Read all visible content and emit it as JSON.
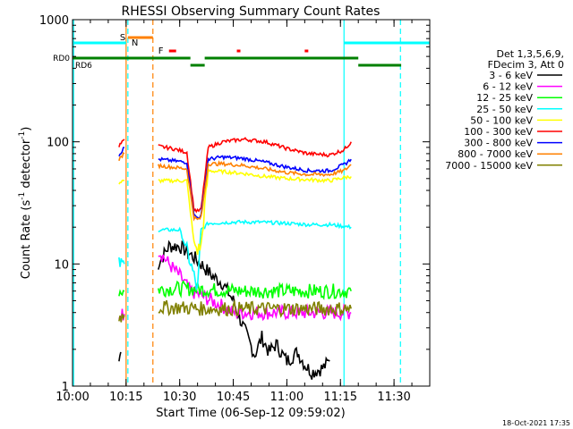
{
  "chart_data": {
    "type": "line",
    "title": "RHESSI Observing Summary Count Rates",
    "xlabel": "Start Time (06-Sep-12 09:59:02)",
    "ylabel_parts": [
      "Count Rate (s",
      "-1",
      " detector",
      "-1",
      ")"
    ],
    "y_log": true,
    "ylim": [
      1,
      1000
    ],
    "xlim_minutes": [
      0,
      100
    ],
    "x_ticks": [
      {
        "m": 0,
        "label": "10:00"
      },
      {
        "m": 15,
        "label": "10:15"
      },
      {
        "m": 30,
        "label": "10:30"
      },
      {
        "m": 45,
        "label": "10:45"
      },
      {
        "m": 60,
        "label": "11:00"
      },
      {
        "m": 75,
        "label": "11:15"
      },
      {
        "m": 90,
        "label": "11:30"
      }
    ],
    "y_ticks": [
      {
        "v": 1,
        "label": "1"
      },
      {
        "v": 10,
        "label": "10"
      },
      {
        "v": 100,
        "label": "100"
      },
      {
        "v": 1000,
        "label": "1000"
      }
    ],
    "footer_date": "18-Oct-2021 17:35",
    "legend_header": [
      "Det 1,3,5,6,9,",
      "FDecim 3, Att 0"
    ],
    "series": [
      {
        "name": "3 - 6 keV",
        "color": "#000000",
        "segments": [
          [
            [
              13,
              1.6
            ],
            [
              13.5,
              1.9
            ]
          ],
          [
            [
              24,
              10
            ],
            [
              27,
              14
            ],
            [
              30,
              14
            ],
            [
              33,
              12
            ],
            [
              36,
              10
            ],
            [
              39,
              8
            ],
            [
              42,
              7
            ],
            [
              45,
              5
            ],
            [
              47,
              3.5
            ],
            [
              49,
              2.5
            ],
            [
              51,
              1.8
            ],
            [
              53,
              2.5
            ],
            [
              55,
              1.9
            ],
            [
              57,
              2.2
            ],
            [
              60,
              1.6
            ],
            [
              63,
              1.9
            ],
            [
              65,
              1.5
            ],
            [
              67,
              1.3
            ],
            [
              70,
              1.4
            ],
            [
              72,
              1.6
            ]
          ]
        ]
      },
      {
        "name": "6 - 12 keV",
        "color": "#ff00ff",
        "segments": [
          [
            [
              13,
              3.8
            ],
            [
              14.5,
              3.9
            ]
          ],
          [
            [
              24,
              13
            ],
            [
              27,
              10
            ],
            [
              30,
              8
            ],
            [
              33,
              6
            ],
            [
              36,
              5.5
            ],
            [
              39,
              5
            ],
            [
              42,
              4.5
            ],
            [
              45,
              4
            ],
            [
              48,
              4
            ],
            [
              51,
              4
            ],
            [
              54,
              4
            ],
            [
              57,
              4
            ],
            [
              60,
              4
            ],
            [
              63,
              4
            ],
            [
              66,
              4
            ],
            [
              69,
              4
            ],
            [
              72,
              4
            ],
            [
              75,
              4
            ],
            [
              78,
              4
            ]
          ]
        ]
      },
      {
        "name": "12 - 25 keV",
        "color": "#00ff00",
        "segments": [
          [
            [
              13,
              6
            ],
            [
              14.5,
              6
            ]
          ],
          [
            [
              24,
              6.2
            ],
            [
              30,
              6.3
            ],
            [
              36,
              6.2
            ],
            [
              42,
              6.1
            ],
            [
              48,
              6
            ],
            [
              54,
              6
            ],
            [
              60,
              6
            ],
            [
              66,
              6
            ],
            [
              72,
              6
            ],
            [
              78,
              6
            ]
          ]
        ]
      },
      {
        "name": "25 - 50 keV",
        "color": "#00ffff",
        "segments": [
          [
            [
              13,
              10
            ],
            [
              14.5,
              10
            ]
          ],
          [
            [
              24,
              19
            ],
            [
              30,
              19
            ],
            [
              32,
              13
            ],
            [
              34,
              8
            ],
            [
              35,
              6
            ],
            [
              36,
              19
            ],
            [
              38,
              21.5
            ],
            [
              45,
              22
            ],
            [
              52,
              22
            ],
            [
              60,
              21.5
            ],
            [
              66,
              21
            ],
            [
              72,
              21
            ],
            [
              78,
              20
            ]
          ]
        ]
      },
      {
        "name": "50 - 100 keV",
        "color": "#ffff00",
        "segments": [
          [
            [
              13,
              46
            ],
            [
              14.5,
              48
            ]
          ],
          [
            [
              24,
              48
            ],
            [
              30,
              48
            ],
            [
              32,
              48
            ],
            [
              34,
              15
            ],
            [
              35,
              13
            ],
            [
              36,
              14
            ],
            [
              38,
              58
            ],
            [
              42,
              57
            ],
            [
              48,
              55
            ],
            [
              54,
              52
            ],
            [
              60,
              50
            ],
            [
              66,
              49
            ],
            [
              72,
              48
            ],
            [
              76,
              51
            ],
            [
              78,
              52
            ]
          ]
        ]
      },
      {
        "name": "100 - 300 keV",
        "color": "#ff0000",
        "segments": [
          [
            [
              13,
              92
            ],
            [
              14.5,
              105
            ]
          ],
          [
            [
              24,
              92
            ],
            [
              28,
              88
            ],
            [
              32,
              82
            ],
            [
              34,
              28
            ],
            [
              35,
              27
            ],
            [
              36,
              28
            ],
            [
              38,
              90
            ],
            [
              42,
              100
            ],
            [
              48,
              105
            ],
            [
              54,
              100
            ],
            [
              60,
              88
            ],
            [
              66,
              80
            ],
            [
              72,
              78
            ],
            [
              76,
              86
            ],
            [
              78,
              100
            ]
          ]
        ]
      },
      {
        "name": "300 - 800 keV",
        "color": "#0000ff",
        "segments": [
          [
            [
              13,
              78
            ],
            [
              14.5,
              90
            ]
          ],
          [
            [
              24,
              72
            ],
            [
              28,
              70
            ],
            [
              32,
              68
            ],
            [
              34,
              25
            ],
            [
              35,
              24
            ],
            [
              36,
              25
            ],
            [
              38,
              72
            ],
            [
              42,
              75
            ],
            [
              48,
              73
            ],
            [
              54,
              68
            ],
            [
              60,
              62
            ],
            [
              66,
              58
            ],
            [
              72,
              58
            ],
            [
              76,
              65
            ],
            [
              78,
              72
            ]
          ]
        ]
      },
      {
        "name": "800 - 7000 keV",
        "color": "#ff8000",
        "segments": [
          [
            [
              13,
              72
            ],
            [
              14.5,
              80
            ]
          ],
          [
            [
              24,
              64
            ],
            [
              28,
              62
            ],
            [
              32,
              60
            ],
            [
              34,
              24
            ],
            [
              35,
              23
            ],
            [
              36,
              24
            ],
            [
              38,
              66
            ],
            [
              42,
              66
            ],
            [
              48,
              64
            ],
            [
              54,
              60
            ],
            [
              60,
              56
            ],
            [
              66,
              54
            ],
            [
              72,
              54
            ],
            [
              76,
              58
            ],
            [
              78,
              65
            ]
          ]
        ]
      },
      {
        "name": "7000 - 15000 keV",
        "color": "#808000",
        "segments": [
          [
            [
              13,
              3.7
            ],
            [
              14.5,
              3.8
            ]
          ],
          [
            [
              24,
              4.4
            ],
            [
              30,
              4.4
            ],
            [
              36,
              4.3
            ],
            [
              42,
              4.3
            ],
            [
              48,
              4.3
            ],
            [
              54,
              4.3
            ],
            [
              60,
              4.3
            ],
            [
              66,
              4.3
            ],
            [
              72,
              4.3
            ],
            [
              78,
              4.3
            ]
          ]
        ]
      }
    ],
    "flags": {
      "saa": [
        {
          "label": "S",
          "color": "#ff8000",
          "start": 15.5,
          "end": 22.5
        }
      ],
      "night": [
        {
          "label": "N",
          "color": "#00ffff",
          "start": 0,
          "end": 15
        },
        {
          "label": "",
          "color": "#00ffff",
          "start": 76,
          "end": 100
        }
      ],
      "flare": [
        {
          "label": "F",
          "color": "#ff0000",
          "start": 27,
          "end": 29
        },
        {
          "label": "",
          "color": "#ff0000",
          "start": 46,
          "end": 47
        },
        {
          "label": "",
          "color": "#ff0000",
          "start": 65,
          "end": 66
        }
      ],
      "decim": [
        {
          "label": "RD0",
          "color": "#008000",
          "start": 0,
          "end": 33,
          "row": 0
        },
        {
          "label": "",
          "color": "#008000",
          "start": 33,
          "end": 37,
          "row": 1
        },
        {
          "label": "",
          "color": "#008000",
          "start": 37,
          "end": 80,
          "row": 0
        },
        {
          "label": "",
          "color": "#008000",
          "start": 80,
          "end": 92,
          "row": 1
        }
      ],
      "rd6_label": "RD6"
    },
    "vertical_lines": [
      {
        "m": 15.0,
        "color": "#ff8000",
        "dash": false
      },
      {
        "m": 15.5,
        "color": "#00ffff",
        "dash": true
      },
      {
        "m": 22.5,
        "color": "#ff8000",
        "dash": true
      },
      {
        "m": 76.0,
        "color": "#00ffff",
        "dash": false
      },
      {
        "m": 91.8,
        "color": "#00ffff",
        "dash": true
      },
      {
        "m": 0.3,
        "color": "#00ffff",
        "dash": false
      }
    ]
  }
}
